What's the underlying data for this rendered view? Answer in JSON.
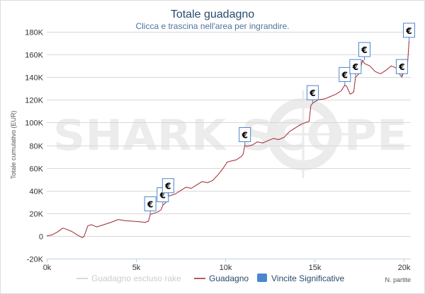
{
  "chart_data": {
    "type": "line",
    "title": "Totale guadagno",
    "subtitle": "Clicca e trascina nell'area per ingrandire.",
    "xlabel": "N. partite",
    "ylabel": "Totale cumulativo (EUR)",
    "xlim": [
      0,
      20400
    ],
    "ylim": [
      -20000,
      180000
    ],
    "x_ticks": [
      0,
      5000,
      10000,
      15000,
      20000
    ],
    "x_tick_labels": [
      "0k",
      "5k",
      "10k",
      "15k",
      "20k"
    ],
    "y_ticks": [
      -20000,
      0,
      20000,
      40000,
      60000,
      80000,
      100000,
      120000,
      140000,
      160000,
      180000
    ],
    "y_tick_labels": [
      "-20K",
      "0",
      "20K",
      "40K",
      "60K",
      "80K",
      "100K",
      "120K",
      "140K",
      "160K",
      "180K"
    ],
    "grid": "horizontal",
    "legend_position": "bottom",
    "watermark": "SHARK SCOPE",
    "series": [
      {
        "name": "Guadagno escluso rake",
        "color": "#cccccc",
        "x": [],
        "y": []
      },
      {
        "name": "Guadagno",
        "color": "#a0262c",
        "x": [
          0,
          300,
          600,
          900,
          1100,
          1400,
          1700,
          2000,
          2100,
          2300,
          2500,
          2800,
          3200,
          3600,
          4000,
          4400,
          4800,
          5200,
          5500,
          5700,
          5800,
          6000,
          6200,
          6400,
          6500,
          6700,
          6800,
          7000,
          7200,
          7500,
          7800,
          8100,
          8400,
          8700,
          9000,
          9300,
          9600,
          9900,
          10100,
          10300,
          10600,
          10900,
          11000,
          11100,
          11200,
          11500,
          11800,
          12100,
          12400,
          12700,
          13000,
          13300,
          13600,
          13900,
          14200,
          14500,
          14700,
          14800,
          14900,
          15200,
          15600,
          15900,
          16200,
          16500,
          16700,
          16800,
          17000,
          17200,
          17300,
          17500,
          17700,
          17800,
          18100,
          18400,
          18700,
          19000,
          19300,
          19600,
          19800,
          19900,
          20000,
          20100,
          20200,
          20300
        ],
        "y": [
          0,
          1000,
          3500,
          7000,
          6000,
          4000,
          1000,
          -1500,
          0,
          9000,
          10000,
          8000,
          10000,
          12000,
          14500,
          13500,
          13000,
          12500,
          12000,
          13000,
          19000,
          20000,
          21000,
          23000,
          27000,
          30000,
          35000,
          36000,
          37000,
          40000,
          43000,
          42000,
          45000,
          48000,
          47000,
          49000,
          54000,
          60000,
          65000,
          66000,
          67000,
          70000,
          72000,
          80000,
          79000,
          80000,
          83000,
          82000,
          84000,
          86000,
          85000,
          87000,
          92000,
          95000,
          98000,
          100000,
          101000,
          115000,
          117000,
          120000,
          121000,
          123000,
          125000,
          128000,
          133000,
          132000,
          125000,
          127000,
          140000,
          143000,
          155000,
          152000,
          150000,
          145000,
          143000,
          146000,
          150000,
          148000,
          142000,
          140000,
          145000,
          147000,
          148000,
          172000
        ]
      },
      {
        "name": "Vincite Significative",
        "color": "#4a86d0",
        "marker": "€",
        "x": [
          5800,
          6500,
          6800,
          11100,
          14900,
          16700,
          17300,
          17800,
          19900,
          20300
        ],
        "y": [
          19000,
          27000,
          35000,
          80000,
          117000,
          133000,
          140000,
          155000,
          140000,
          172000
        ]
      }
    ]
  }
}
